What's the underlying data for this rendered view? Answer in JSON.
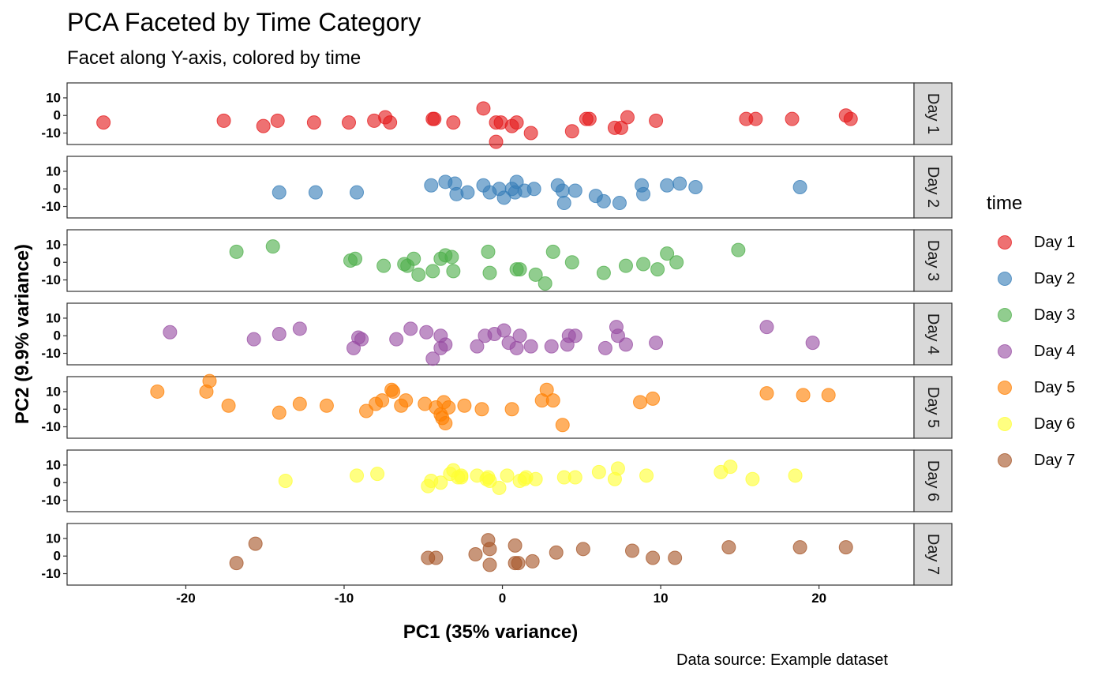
{
  "chart_data": {
    "type": "scatter",
    "title": "PCA Faceted by Time Category",
    "subtitle": "Facet along Y-axis, colored by time",
    "caption": "Data source: Example dataset",
    "xlabel": "PC1 (35% variance)",
    "ylabel": "PC2 (9.9% variance)",
    "xlim": [
      -27.5,
      26
    ],
    "ylim": [
      -16.5,
      18.5
    ],
    "x_ticks": [
      -20,
      -10,
      0,
      10,
      20
    ],
    "x_tick_labels": [
      "-20",
      "-10",
      "0",
      "10",
      "20"
    ],
    "y_ticks": [
      10,
      0,
      -10
    ],
    "y_tick_labels": [
      "10",
      "0",
      "-10"
    ],
    "facet": "rows",
    "grid": false,
    "legend": {
      "title": "time",
      "position": "right"
    },
    "series": [
      {
        "name": "Day 1",
        "color": "#E41A1C",
        "points": [
          [
            -25.2,
            -4
          ],
          [
            -17.6,
            -3
          ],
          [
            -15.1,
            -6
          ],
          [
            -14.2,
            -3
          ],
          [
            -11.9,
            -4
          ],
          [
            -9.7,
            -4
          ],
          [
            -8.1,
            -3
          ],
          [
            -7.4,
            -1
          ],
          [
            -7.1,
            -4
          ],
          [
            -4.4,
            -2
          ],
          [
            -4.3,
            -2
          ],
          [
            -3.1,
            -4
          ],
          [
            -1.2,
            4
          ],
          [
            -0.4,
            -4
          ],
          [
            -0.1,
            -4
          ],
          [
            0.6,
            -6
          ],
          [
            0.9,
            -4
          ],
          [
            1.8,
            -10
          ],
          [
            -0.4,
            -15
          ],
          [
            4.4,
            -9
          ],
          [
            5.3,
            -2
          ],
          [
            5.5,
            -2
          ],
          [
            7.1,
            -7
          ],
          [
            7.5,
            -7
          ],
          [
            7.9,
            -1
          ],
          [
            9.7,
            -3
          ],
          [
            15.4,
            -2
          ],
          [
            16.0,
            -2
          ],
          [
            18.3,
            -2
          ],
          [
            21.7,
            0
          ],
          [
            22.0,
            -2
          ]
        ]
      },
      {
        "name": "Day 2",
        "color": "#377EB8",
        "points": [
          [
            -14.1,
            -2
          ],
          [
            -11.8,
            -2
          ],
          [
            -9.2,
            -2
          ],
          [
            -4.5,
            2
          ],
          [
            -3.6,
            4
          ],
          [
            -3.0,
            3
          ],
          [
            -2.9,
            -3
          ],
          [
            -2.2,
            -2
          ],
          [
            -1.2,
            2
          ],
          [
            -0.8,
            -2
          ],
          [
            -0.2,
            0
          ],
          [
            0.1,
            -5
          ],
          [
            0.6,
            0
          ],
          [
            0.8,
            -2
          ],
          [
            0.9,
            4
          ],
          [
            1.4,
            -1
          ],
          [
            2.0,
            0
          ],
          [
            3.5,
            2
          ],
          [
            3.8,
            -1
          ],
          [
            3.9,
            -8
          ],
          [
            4.6,
            -1
          ],
          [
            5.9,
            -4
          ],
          [
            6.4,
            -7
          ],
          [
            7.4,
            -8
          ],
          [
            8.8,
            2
          ],
          [
            8.9,
            -3
          ],
          [
            10.4,
            2
          ],
          [
            11.2,
            3
          ],
          [
            12.2,
            1
          ],
          [
            18.8,
            1
          ]
        ]
      },
      {
        "name": "Day 3",
        "color": "#4DAF4A",
        "points": [
          [
            -16.8,
            6
          ],
          [
            -14.5,
            9
          ],
          [
            -9.6,
            1
          ],
          [
            -9.3,
            2
          ],
          [
            -7.5,
            -2
          ],
          [
            -6.2,
            -1
          ],
          [
            -6.0,
            -2
          ],
          [
            -5.6,
            2
          ],
          [
            -5.3,
            -7
          ],
          [
            -4.4,
            -5
          ],
          [
            -3.9,
            2
          ],
          [
            -3.6,
            4
          ],
          [
            -3.2,
            3
          ],
          [
            -3.1,
            -5
          ],
          [
            -0.9,
            6
          ],
          [
            -0.8,
            -6
          ],
          [
            0.9,
            -4
          ],
          [
            1.1,
            -4
          ],
          [
            2.1,
            -7
          ],
          [
            2.7,
            -12
          ],
          [
            3.2,
            6
          ],
          [
            4.4,
            0
          ],
          [
            6.4,
            -6
          ],
          [
            7.8,
            -2
          ],
          [
            8.9,
            -1
          ],
          [
            9.8,
            -4
          ],
          [
            10.4,
            5
          ],
          [
            11.0,
            0
          ],
          [
            14.9,
            7
          ]
        ]
      },
      {
        "name": "Day 4",
        "color": "#984EA3",
        "points": [
          [
            -21.0,
            2
          ],
          [
            -15.7,
            -2
          ],
          [
            -14.1,
            1
          ],
          [
            -12.8,
            4
          ],
          [
            -9.4,
            -7
          ],
          [
            -9.1,
            -1
          ],
          [
            -8.9,
            -2
          ],
          [
            -6.7,
            -2
          ],
          [
            -5.8,
            4
          ],
          [
            -4.8,
            2
          ],
          [
            -4.4,
            -13
          ],
          [
            -3.9,
            -7
          ],
          [
            -3.6,
            -5
          ],
          [
            -3.9,
            0
          ],
          [
            -1.6,
            -6
          ],
          [
            -1.1,
            0
          ],
          [
            -0.5,
            1
          ],
          [
            0.1,
            3
          ],
          [
            0.4,
            -4
          ],
          [
            0.9,
            -7
          ],
          [
            1.1,
            0
          ],
          [
            1.8,
            -6
          ],
          [
            3.1,
            -6
          ],
          [
            4.1,
            -5
          ],
          [
            4.2,
            0
          ],
          [
            4.6,
            0
          ],
          [
            6.5,
            -7
          ],
          [
            7.2,
            5
          ],
          [
            7.3,
            0
          ],
          [
            7.8,
            -5
          ],
          [
            9.7,
            -4
          ],
          [
            16.7,
            5
          ],
          [
            19.6,
            -4
          ]
        ]
      },
      {
        "name": "Day 5",
        "color": "#FF7F00",
        "points": [
          [
            -21.8,
            10
          ],
          [
            -18.7,
            10
          ],
          [
            -18.5,
            16
          ],
          [
            -17.3,
            2
          ],
          [
            -14.1,
            -2
          ],
          [
            -12.8,
            3
          ],
          [
            -11.1,
            2
          ],
          [
            -8.6,
            -1
          ],
          [
            -8.0,
            3
          ],
          [
            -7.6,
            5
          ],
          [
            -7.0,
            11
          ],
          [
            -6.9,
            10
          ],
          [
            -6.4,
            2
          ],
          [
            -6.1,
            5
          ],
          [
            -4.9,
            3
          ],
          [
            -4.2,
            1
          ],
          [
            -3.9,
            -3
          ],
          [
            -3.8,
            -5
          ],
          [
            -3.6,
            -8
          ],
          [
            -3.7,
            4
          ],
          [
            -3.4,
            1
          ],
          [
            -2.4,
            2
          ],
          [
            -1.3,
            0
          ],
          [
            0.6,
            0
          ],
          [
            2.5,
            5
          ],
          [
            2.8,
            11
          ],
          [
            3.2,
            5
          ],
          [
            3.8,
            -9
          ],
          [
            8.7,
            4
          ],
          [
            9.5,
            6
          ],
          [
            16.7,
            9
          ],
          [
            19.0,
            8
          ],
          [
            20.6,
            8
          ]
        ]
      },
      {
        "name": "Day 6",
        "color": "#FFFF33",
        "points": [
          [
            -13.7,
            1
          ],
          [
            -9.2,
            4
          ],
          [
            -7.9,
            5
          ],
          [
            -4.7,
            -2
          ],
          [
            -4.5,
            1
          ],
          [
            -3.9,
            0
          ],
          [
            -3.3,
            5
          ],
          [
            -3.1,
            7
          ],
          [
            -2.8,
            3
          ],
          [
            -2.6,
            3
          ],
          [
            -2.6,
            4
          ],
          [
            -1.6,
            4
          ],
          [
            -1.0,
            2
          ],
          [
            -0.9,
            3
          ],
          [
            -0.8,
            1
          ],
          [
            -0.2,
            -3
          ],
          [
            0.3,
            4
          ],
          [
            1.1,
            1
          ],
          [
            1.4,
            2
          ],
          [
            1.5,
            3
          ],
          [
            2.1,
            2
          ],
          [
            3.9,
            3
          ],
          [
            4.6,
            3
          ],
          [
            6.1,
            6
          ],
          [
            7.1,
            2
          ],
          [
            7.3,
            8
          ],
          [
            9.1,
            4
          ],
          [
            13.8,
            6
          ],
          [
            14.4,
            9
          ],
          [
            15.8,
            2
          ],
          [
            18.5,
            4
          ]
        ]
      },
      {
        "name": "Day 7",
        "color": "#A65628",
        "points": [
          [
            -16.8,
            -4
          ],
          [
            -15.6,
            7
          ],
          [
            -4.7,
            -1
          ],
          [
            -4.2,
            -1
          ],
          [
            -1.7,
            1
          ],
          [
            -0.9,
            9
          ],
          [
            -0.8,
            4
          ],
          [
            -0.8,
            -5
          ],
          [
            0.8,
            6
          ],
          [
            0.8,
            -4
          ],
          [
            1.0,
            -4
          ],
          [
            1.9,
            -3
          ],
          [
            3.4,
            2
          ],
          [
            5.1,
            4
          ],
          [
            8.2,
            3
          ],
          [
            9.5,
            -1
          ],
          [
            10.9,
            -1
          ],
          [
            14.3,
            5
          ],
          [
            18.8,
            5
          ],
          [
            21.7,
            5
          ]
        ]
      }
    ]
  }
}
